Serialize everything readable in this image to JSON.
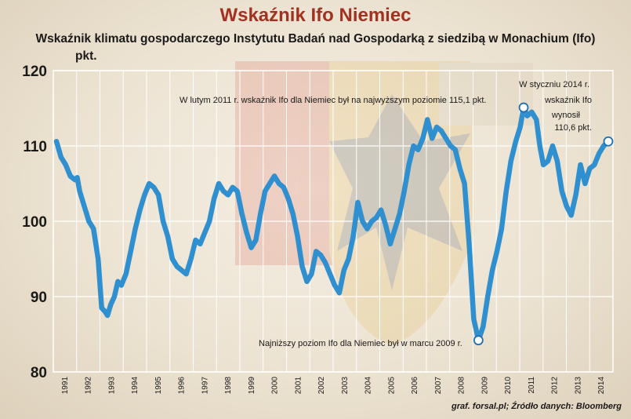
{
  "title": "Wskaźnik Ifo Niemiec",
  "subtitle": "Wskaźnik klimatu gospodarczego Instytutu Badań nad Gospodarką z siedzibą w Monachium (Ifo)",
  "source": "graf. forsal.pl; Źródło danych: Bloomberg",
  "colors": {
    "line": "#2f8fcf",
    "title": "#a23121",
    "grid": "#ffffff"
  },
  "chart_data": {
    "type": "line",
    "ylabel": "pkt.",
    "ylim": [
      80,
      120
    ],
    "yticks": [
      80,
      90,
      100,
      110,
      120
    ],
    "xlim": [
      1990.8,
      2014.2
    ],
    "xticks": [
      "1991",
      "1992",
      "1993",
      "1994",
      "1995",
      "1996",
      "1997",
      "1998",
      "1999",
      "2000",
      "2001",
      "2002",
      "2003",
      "2004",
      "2005",
      "2006",
      "2007",
      "2008",
      "2009",
      "2010",
      "2011",
      "2012",
      "2013",
      "2014"
    ],
    "grid": true,
    "series": [
      {
        "values": [
          [
            1991.0,
            110.6
          ],
          [
            1991.2,
            108.5
          ],
          [
            1991.4,
            107.5
          ],
          [
            1991.6,
            106.0
          ],
          [
            1991.8,
            105.5
          ],
          [
            1991.9,
            105.8
          ],
          [
            1992.0,
            104.0
          ],
          [
            1992.2,
            102.0
          ],
          [
            1992.4,
            100.0
          ],
          [
            1992.6,
            99.0
          ],
          [
            1992.8,
            95.0
          ],
          [
            1992.95,
            88.5
          ],
          [
            1993.1,
            88.0
          ],
          [
            1993.2,
            87.5
          ],
          [
            1993.35,
            89.0
          ],
          [
            1993.5,
            90.0
          ],
          [
            1993.65,
            92.0
          ],
          [
            1993.8,
            91.5
          ],
          [
            1994.0,
            93.0
          ],
          [
            1994.2,
            96.0
          ],
          [
            1994.4,
            99.0
          ],
          [
            1994.6,
            101.5
          ],
          [
            1994.8,
            103.5
          ],
          [
            1995.0,
            105.0
          ],
          [
            1995.2,
            104.5
          ],
          [
            1995.4,
            103.5
          ],
          [
            1995.6,
            100.0
          ],
          [
            1995.8,
            98.0
          ],
          [
            1996.0,
            95.0
          ],
          [
            1996.2,
            94.0
          ],
          [
            1996.4,
            93.5
          ],
          [
            1996.6,
            93.0
          ],
          [
            1996.8,
            95.0
          ],
          [
            1997.0,
            97.5
          ],
          [
            1997.2,
            97.0
          ],
          [
            1997.4,
            98.5
          ],
          [
            1997.6,
            100.0
          ],
          [
            1997.8,
            103.0
          ],
          [
            1998.0,
            105.0
          ],
          [
            1998.2,
            104.0
          ],
          [
            1998.4,
            103.5
          ],
          [
            1998.6,
            104.5
          ],
          [
            1998.8,
            104.0
          ],
          [
            1999.0,
            101.0
          ],
          [
            1999.2,
            98.5
          ],
          [
            1999.4,
            96.5
          ],
          [
            1999.6,
            97.5
          ],
          [
            1999.8,
            101.0
          ],
          [
            2000.0,
            104.0
          ],
          [
            2000.2,
            105.0
          ],
          [
            2000.4,
            106.0
          ],
          [
            2000.6,
            105.0
          ],
          [
            2000.8,
            104.5
          ],
          [
            2001.0,
            103.0
          ],
          [
            2001.2,
            101.0
          ],
          [
            2001.4,
            98.0
          ],
          [
            2001.6,
            94.0
          ],
          [
            2001.8,
            92.0
          ],
          [
            2002.0,
            93.0
          ],
          [
            2002.2,
            96.0
          ],
          [
            2002.4,
            95.5
          ],
          [
            2002.6,
            94.5
          ],
          [
            2002.8,
            93.0
          ],
          [
            2003.0,
            91.5
          ],
          [
            2003.2,
            90.5
          ],
          [
            2003.4,
            93.5
          ],
          [
            2003.6,
            95.0
          ],
          [
            2003.8,
            98.0
          ],
          [
            2004.0,
            102.5
          ],
          [
            2004.2,
            100.0
          ],
          [
            2004.4,
            99.0
          ],
          [
            2004.6,
            100.0
          ],
          [
            2004.8,
            100.5
          ],
          [
            2005.0,
            101.5
          ],
          [
            2005.2,
            99.5
          ],
          [
            2005.4,
            97.0
          ],
          [
            2005.6,
            99.0
          ],
          [
            2005.8,
            101.0
          ],
          [
            2006.0,
            104.0
          ],
          [
            2006.2,
            107.5
          ],
          [
            2006.4,
            110.0
          ],
          [
            2006.6,
            109.5
          ],
          [
            2006.8,
            111.0
          ],
          [
            2007.0,
            113.5
          ],
          [
            2007.2,
            111.0
          ],
          [
            2007.4,
            112.5
          ],
          [
            2007.6,
            112.0
          ],
          [
            2007.8,
            111.0
          ],
          [
            2008.0,
            110.0
          ],
          [
            2008.2,
            109.5
          ],
          [
            2008.4,
            107.0
          ],
          [
            2008.6,
            105.0
          ],
          [
            2008.8,
            97.0
          ],
          [
            2009.0,
            87.0
          ],
          [
            2009.2,
            84.2
          ],
          [
            2009.4,
            86.0
          ],
          [
            2009.6,
            90.0
          ],
          [
            2009.8,
            93.5
          ],
          [
            2010.0,
            96.0
          ],
          [
            2010.2,
            99.0
          ],
          [
            2010.4,
            104.0
          ],
          [
            2010.6,
            108.0
          ],
          [
            2010.8,
            110.5
          ],
          [
            2011.0,
            112.5
          ],
          [
            2011.15,
            115.1
          ],
          [
            2011.3,
            114.0
          ],
          [
            2011.5,
            114.5
          ],
          [
            2011.7,
            113.5
          ],
          [
            2011.85,
            110.0
          ],
          [
            2012.0,
            107.5
          ],
          [
            2012.2,
            108.0
          ],
          [
            2012.4,
            110.0
          ],
          [
            2012.6,
            108.0
          ],
          [
            2012.8,
            104.0
          ],
          [
            2013.0,
            102.0
          ],
          [
            2013.2,
            100.8
          ],
          [
            2013.4,
            103.5
          ],
          [
            2013.6,
            107.5
          ],
          [
            2013.8,
            105.0
          ],
          [
            2014.0,
            107.0
          ],
          [
            2014.2,
            107.5
          ],
          [
            2014.4,
            109.0
          ],
          [
            2014.6,
            110.0
          ],
          [
            2014.8,
            110.6
          ]
        ]
      }
    ],
    "markers": [
      {
        "x": 2009.2,
        "y": 84.2
      },
      {
        "x": 2011.15,
        "y": 115.1
      },
      {
        "x": 2014.8,
        "y": 110.6
      }
    ],
    "annotations": [
      {
        "text": "W lutym 2011 r. wskaźnik Ifo dla Niemiec był na najwyższym poziomie 115,1 pkt."
      },
      {
        "text": "Najniższy poziom Ifo dla Niemiec był w marcu 2009 r."
      },
      {
        "lines": [
          "W styczniu 2014 r.",
          "wskaźnik Ifo",
          "wynosił",
          "110,6 pkt."
        ]
      }
    ]
  }
}
